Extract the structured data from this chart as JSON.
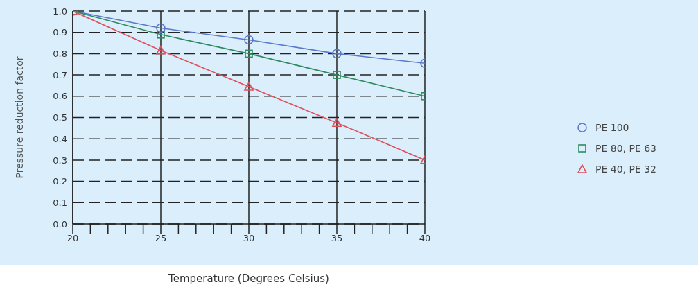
{
  "chart_data": {
    "type": "line",
    "xlabel": "Temperature (Degrees Celsius)",
    "ylabel": "Pressure reduction factor",
    "x": [
      20,
      25,
      30,
      35,
      40
    ],
    "series": [
      {
        "name": "PE 100",
        "color": "#5a78cc",
        "marker": "circle",
        "values": [
          1.0,
          0.92,
          0.865,
          0.8,
          0.755
        ]
      },
      {
        "name": "PE 80, PE 63",
        "color": "#2f8a5e",
        "marker": "square",
        "values": [
          1.0,
          0.89,
          0.8,
          0.7,
          0.6
        ]
      },
      {
        "name": "PE 40, PE 32",
        "color": "#e0505a",
        "marker": "triangle",
        "values": [
          1.0,
          0.815,
          0.645,
          0.475,
          0.3
        ]
      }
    ],
    "xlim": [
      20,
      40
    ],
    "xticks": [
      20,
      {
        "value": 21,
        "label": null
      },
      {
        "value": 22,
        "label": null
      },
      {
        "value": 23,
        "label": null
      },
      {
        "value": 24,
        "label": null
      },
      25,
      {
        "value": 26,
        "label": null
      },
      {
        "value": 27,
        "label": null
      },
      {
        "value": 28,
        "label": null
      },
      {
        "value": 29,
        "label": null
      },
      30,
      {
        "value": 31,
        "label": null
      },
      {
        "value": 32,
        "label": null
      },
      {
        "value": 33,
        "label": null
      },
      {
        "value": 34,
        "label": null
      },
      35,
      {
        "value": 36,
        "label": null
      },
      {
        "value": 37,
        "label": null
      },
      {
        "value": 38,
        "label": null
      },
      {
        "value": 39,
        "label": null
      },
      40
    ],
    "ylim": [
      0,
      1
    ],
    "yticks": [
      {
        "value": 0,
        "label": "0.0"
      },
      {
        "value": 0.1,
        "label": "0.1"
      },
      {
        "value": 0.2,
        "label": "0.2"
      },
      {
        "value": 0.3,
        "label": "0.3"
      },
      {
        "value": 0.4,
        "label": "0.4"
      },
      {
        "value": 0.5,
        "label": "0.5"
      },
      {
        "value": 0.6,
        "label": "0.6"
      },
      {
        "value": 0.7,
        "label": "0.7"
      },
      {
        "value": 0.8,
        "label": "0.8"
      },
      {
        "value": 0.9,
        "label": "0.9"
      },
      {
        "value": 1,
        "label": "1.0"
      }
    ],
    "grid": true,
    "legend": "right",
    "line_style": "solid"
  }
}
